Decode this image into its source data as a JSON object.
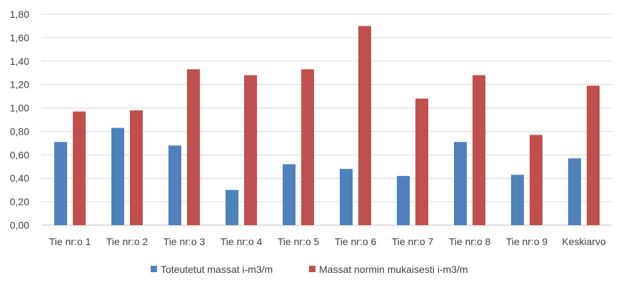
{
  "chart_data": {
    "type": "bar",
    "categories": [
      "Tie nr:o 1",
      "Tie nr:o 2",
      "Tie nr:o 3",
      "Tie nr:o 4",
      "Tie nr:o 5",
      "Tie nr:o 6",
      "Tie nr:o 7",
      "Tie nr:o 8",
      "Tie nr:o 9",
      "Keskiarvo"
    ],
    "series": [
      {
        "name": "Toteutetut massat i-m3/m",
        "color": "#4f81bd",
        "values": [
          0.71,
          0.83,
          0.68,
          0.3,
          0.52,
          0.48,
          0.42,
          0.71,
          0.43,
          0.57
        ]
      },
      {
        "name": "Massat normin mukaisesti i-m3/m",
        "color": "#c0504d",
        "values": [
          0.97,
          0.98,
          1.33,
          1.28,
          1.33,
          1.7,
          1.08,
          1.28,
          0.77,
          1.19
        ]
      }
    ],
    "yticks": [
      "0,00",
      "0,20",
      "0,40",
      "0,60",
      "0,80",
      "1,00",
      "1,20",
      "1,40",
      "1,60",
      "1,80"
    ],
    "ylim": [
      0,
      1.8
    ],
    "grid": true,
    "legend_position": "bottom",
    "title": "",
    "xlabel": "",
    "ylabel": ""
  }
}
